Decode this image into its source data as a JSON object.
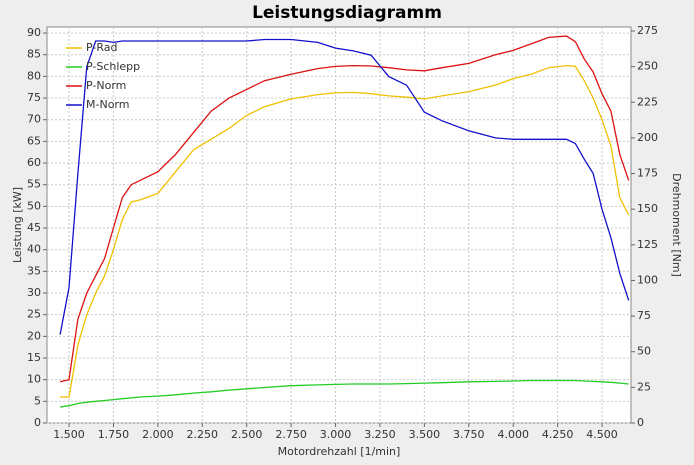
{
  "chart_data": {
    "type": "line",
    "title": "Leistungsdiagramm",
    "xlabel": "Motordrehzahl [1/min]",
    "ylabel": "Leistung [kW]",
    "y2label": "Drehmoment [Nm]",
    "x": [
      1450,
      1500,
      1550,
      1600,
      1650,
      1700,
      1750,
      1800,
      1850,
      1900,
      2000,
      2100,
      2200,
      2300,
      2400,
      2500,
      2600,
      2750,
      2900,
      3000,
      3100,
      3200,
      3300,
      3400,
      3500,
      3600,
      3750,
      3900,
      4000,
      4100,
      4200,
      4300,
      4350,
      4400,
      4450,
      4500,
      4550,
      4600,
      4650
    ],
    "series": [
      {
        "name": "P-Rad",
        "color": "#f0c000",
        "values": [
          6,
          6,
          18,
          25,
          30,
          34,
          40,
          47,
          51,
          51.5,
          53,
          58,
          63,
          65.5,
          68,
          71,
          73,
          74.8,
          75.8,
          76.2,
          76.3,
          76,
          75.5,
          75.2,
          74.8,
          75.5,
          76.5,
          78,
          79.5,
          80.5,
          82,
          82.5,
          82.3,
          79,
          75,
          70,
          64,
          52,
          48
        ]
      },
      {
        "name": "P-Schlepp",
        "color": "#22cc22",
        "values": [
          3.7,
          4,
          4.5,
          4.8,
          5,
          5.2,
          5.4,
          5.6,
          5.8,
          6,
          6.2,
          6.5,
          6.9,
          7.2,
          7.6,
          7.9,
          8.2,
          8.6,
          8.8,
          8.9,
          9,
          9,
          9,
          9.1,
          9.2,
          9.3,
          9.5,
          9.6,
          9.7,
          9.8,
          9.8,
          9.8,
          9.8,
          9.7,
          9.6,
          9.5,
          9.4,
          9.2,
          9
        ]
      },
      {
        "name": "P-Norm",
        "color": "#dd1111",
        "values": [
          9.5,
          10,
          24,
          30,
          34,
          38,
          45,
          52,
          55,
          56,
          58,
          62,
          67,
          72,
          75,
          77,
          79,
          80.5,
          81.8,
          82.3,
          82.5,
          82.4,
          82,
          81.5,
          81.3,
          82,
          83,
          85,
          86,
          87.5,
          89,
          89.3,
          88,
          84,
          81,
          76,
          72,
          62,
          56
        ]
      },
      {
        "name": "M-Norm",
        "color": "#1111cc",
        "axis": "y2",
        "values": [
          62,
          95,
          175,
          250,
          268,
          268,
          267,
          268,
          268,
          268,
          268,
          268,
          268,
          268,
          268,
          268,
          269,
          269,
          267,
          263,
          261,
          258,
          243,
          237,
          218,
          212,
          205,
          200,
          199,
          199,
          199,
          199,
          196,
          185,
          175,
          150,
          130,
          105,
          86
        ]
      }
    ],
    "xlim": [
      1376,
      4663
    ],
    "xticks": [
      {
        "value": 1500,
        "label": "1.500"
      },
      {
        "value": 1750,
        "label": "1.750"
      },
      {
        "value": 2000,
        "label": "2.000"
      },
      {
        "value": 2250,
        "label": "2.250"
      },
      {
        "value": 2500,
        "label": "2.500"
      },
      {
        "value": 2750,
        "label": "2.750"
      },
      {
        "value": 3000,
        "label": "3.000"
      },
      {
        "value": 3250,
        "label": "3.250"
      },
      {
        "value": 3500,
        "label": "3.500"
      },
      {
        "value": 3750,
        "label": "3.750"
      },
      {
        "value": 4000,
        "label": "4.000"
      },
      {
        "value": 4250,
        "label": "4.250"
      },
      {
        "value": 4500,
        "label": "4.500"
      }
    ],
    "ylim": [
      0,
      91.4
    ],
    "yticks": [
      0,
      5,
      10,
      15,
      20,
      25,
      30,
      35,
      40,
      45,
      50,
      55,
      60,
      65,
      70,
      75,
      80,
      85,
      90
    ],
    "y2lim": [
      0,
      277.8
    ],
    "y2ticks": [
      0,
      25,
      50,
      75,
      100,
      125,
      150,
      175,
      200,
      225,
      250,
      275
    ],
    "grid": true,
    "legend": "upper left"
  }
}
